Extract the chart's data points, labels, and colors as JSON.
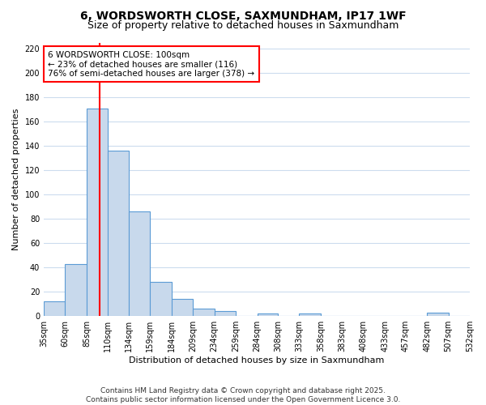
{
  "title_line1": "6, WORDSWORTH CLOSE, SAXMUNDHAM, IP17 1WF",
  "title_line2": "Size of property relative to detached houses in Saxmundham",
  "xlabel": "Distribution of detached houses by size in Saxmundham",
  "ylabel": "Number of detached properties",
  "bar_color": "#c8d9ec",
  "bar_edge_color": "#5b9bd5",
  "background_color": "#ffffff",
  "plot_bg_color": "#ffffff",
  "grid_color": "#ccdcee",
  "vline_color": "red",
  "vline_x": 100,
  "annotation_title": "6 WORDSWORTH CLOSE: 100sqm",
  "annotation_line2": "← 23% of detached houses are smaller (116)",
  "annotation_line3": "76% of semi-detached houses are larger (378) →",
  "annotation_box_color": "white",
  "annotation_box_edge": "red",
  "bins": [
    35,
    60,
    85,
    110,
    134,
    159,
    184,
    209,
    234,
    259,
    284,
    308,
    333,
    358,
    383,
    408,
    433,
    457,
    482,
    507,
    532
  ],
  "counts": [
    12,
    43,
    171,
    136,
    86,
    28,
    14,
    6,
    4,
    0,
    2,
    0,
    2,
    0,
    0,
    0,
    0,
    0,
    3,
    0
  ],
  "ylim": [
    0,
    225
  ],
  "yticks": [
    0,
    20,
    40,
    60,
    80,
    100,
    120,
    140,
    160,
    180,
    200,
    220
  ],
  "footer": "Contains HM Land Registry data © Crown copyright and database right 2025.\nContains public sector information licensed under the Open Government Licence 3.0.",
  "title_fontsize": 10,
  "subtitle_fontsize": 9,
  "axis_label_fontsize": 8,
  "tick_fontsize": 7,
  "footer_fontsize": 6.5,
  "annotation_fontsize": 7.5
}
